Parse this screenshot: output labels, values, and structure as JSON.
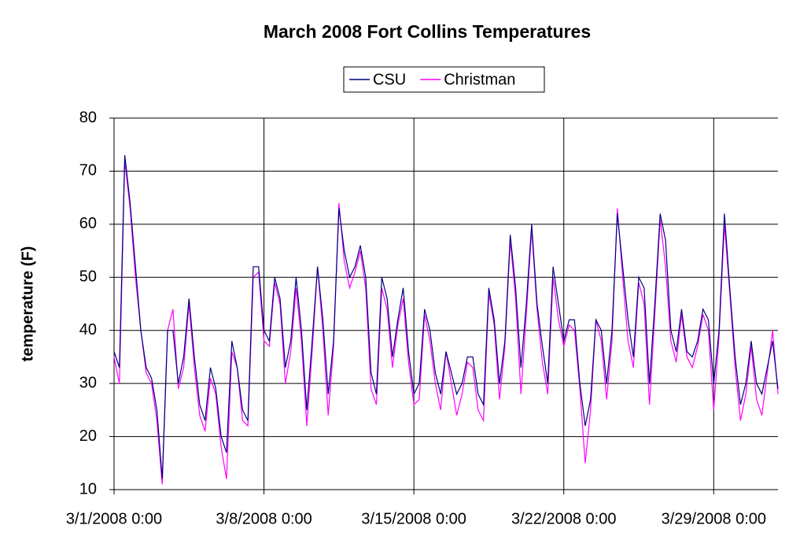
{
  "chart_data": {
    "type": "line",
    "title": "March 2008 Fort Collins Temperatures",
    "y_label": "temperature (F)",
    "ylim": [
      10,
      80
    ],
    "yticks": [
      10,
      20,
      30,
      40,
      50,
      60,
      70,
      80
    ],
    "xlim": [
      "3/1/2008 0:00",
      "4/1/2008 0:00"
    ],
    "xticks": [
      "3/1/2008 0:00",
      "3/8/2008 0:00",
      "3/15/2008 0:00",
      "3/22/2008 0:00",
      "3/29/2008 0:00"
    ],
    "grid": true,
    "legend": "top",
    "x": [
      "3/1/2008 0:00",
      "3/1/2008 6:00",
      "3/1/2008 12:00",
      "3/1/2008 18:00",
      "3/2/2008 0:00",
      "3/2/2008 6:00",
      "3/2/2008 12:00",
      "3/2/2008 18:00",
      "3/3/2008 0:00",
      "3/3/2008 6:00",
      "3/3/2008 12:00",
      "3/3/2008 18:00",
      "3/4/2008 0:00",
      "3/4/2008 6:00",
      "3/4/2008 12:00",
      "3/4/2008 18:00",
      "3/5/2008 0:00",
      "3/5/2008 6:00",
      "3/5/2008 12:00",
      "3/5/2008 18:00",
      "3/6/2008 0:00",
      "3/6/2008 6:00",
      "3/6/2008 12:00",
      "3/6/2008 18:00",
      "3/7/2008 0:00",
      "3/7/2008 6:00",
      "3/7/2008 12:00",
      "3/7/2008 18:00",
      "3/8/2008 0:00",
      "3/8/2008 6:00",
      "3/8/2008 12:00",
      "3/8/2008 18:00",
      "3/9/2008 0:00",
      "3/9/2008 6:00",
      "3/9/2008 12:00",
      "3/9/2008 18:00",
      "3/10/2008 0:00",
      "3/10/2008 6:00",
      "3/10/2008 12:00",
      "3/10/2008 18:00",
      "3/11/2008 0:00",
      "3/11/2008 6:00",
      "3/11/2008 12:00",
      "3/11/2008 18:00",
      "3/12/2008 0:00",
      "3/12/2008 6:00",
      "3/12/2008 12:00",
      "3/12/2008 18:00",
      "3/13/2008 0:00",
      "3/13/2008 6:00",
      "3/13/2008 12:00",
      "3/13/2008 18:00",
      "3/14/2008 0:00",
      "3/14/2008 6:00",
      "3/14/2008 12:00",
      "3/14/2008 18:00",
      "3/15/2008 0:00",
      "3/15/2008 6:00",
      "3/15/2008 12:00",
      "3/15/2008 18:00",
      "3/16/2008 0:00",
      "3/16/2008 6:00",
      "3/16/2008 12:00",
      "3/16/2008 18:00",
      "3/17/2008 0:00",
      "3/17/2008 6:00",
      "3/17/2008 12:00",
      "3/17/2008 18:00",
      "3/18/2008 0:00",
      "3/18/2008 6:00",
      "3/18/2008 12:00",
      "3/18/2008 18:00",
      "3/19/2008 0:00",
      "3/19/2008 6:00",
      "3/19/2008 12:00",
      "3/19/2008 18:00",
      "3/20/2008 0:00",
      "3/20/2008 6:00",
      "3/20/2008 12:00",
      "3/20/2008 18:00",
      "3/21/2008 0:00",
      "3/21/2008 6:00",
      "3/21/2008 12:00",
      "3/21/2008 18:00",
      "3/22/2008 0:00",
      "3/22/2008 6:00",
      "3/22/2008 12:00",
      "3/22/2008 18:00",
      "3/23/2008 0:00",
      "3/23/2008 6:00",
      "3/23/2008 12:00",
      "3/23/2008 18:00",
      "3/24/2008 0:00",
      "3/24/2008 6:00",
      "3/24/2008 12:00",
      "3/24/2008 18:00",
      "3/25/2008 0:00",
      "3/25/2008 6:00",
      "3/25/2008 12:00",
      "3/25/2008 18:00",
      "3/26/2008 0:00",
      "3/26/2008 6:00",
      "3/26/2008 12:00",
      "3/26/2008 18:00",
      "3/27/2008 0:00",
      "3/27/2008 6:00",
      "3/27/2008 12:00",
      "3/27/2008 18:00",
      "3/28/2008 0:00",
      "3/28/2008 6:00",
      "3/28/2008 12:00",
      "3/28/2008 18:00",
      "3/29/2008 0:00",
      "3/29/2008 6:00",
      "3/29/2008 12:00",
      "3/29/2008 18:00",
      "3/30/2008 0:00",
      "3/30/2008 6:00",
      "3/30/2008 12:00",
      "3/30/2008 18:00",
      "3/31/2008 0:00",
      "3/31/2008 6:00",
      "3/31/2008 12:00",
      "3/31/2008 18:00",
      "4/1/2008 0:00"
    ],
    "series": [
      {
        "name": "CSU",
        "color": "#000080",
        "values": [
          36,
          33,
          73,
          64,
          52,
          40,
          33,
          31,
          25,
          12,
          40,
          40,
          30,
          35,
          46,
          35,
          26,
          23,
          33,
          29,
          20,
          17,
          38,
          33,
          25,
          23,
          52,
          52,
          40,
          38,
          50,
          46,
          33,
          38,
          50,
          40,
          25,
          38,
          52,
          42,
          28,
          38,
          63,
          55,
          50,
          52,
          56,
          50,
          32,
          28,
          50,
          46,
          35,
          42,
          48,
          36,
          28,
          30,
          44,
          40,
          32,
          28,
          36,
          32,
          28,
          30,
          35,
          35,
          28,
          26,
          48,
          42,
          30,
          38,
          58,
          48,
          33,
          45,
          60,
          45,
          37,
          30,
          52,
          45,
          38,
          42,
          42,
          30,
          22,
          27,
          42,
          40,
          30,
          40,
          62,
          52,
          42,
          35,
          50,
          48,
          30,
          45,
          62,
          57,
          40,
          36,
          44,
          36,
          35,
          38,
          44,
          42,
          30,
          40,
          62,
          48,
          35,
          26,
          30,
          38,
          30,
          28,
          33,
          38,
          29
        ]
      },
      {
        "name": "Christman",
        "color": "#ff00ff",
        "values": [
          35,
          30,
          72,
          63,
          50,
          40,
          32,
          30,
          23,
          11,
          40,
          44,
          29,
          33,
          45,
          33,
          24,
          21,
          31,
          28,
          18,
          12,
          36,
          33,
          23,
          22,
          50,
          51,
          38,
          37,
          49,
          45,
          30,
          36,
          48,
          38,
          22,
          36,
          52,
          40,
          24,
          37,
          64,
          53,
          48,
          51,
          55,
          48,
          29,
          26,
          48,
          44,
          33,
          41,
          46,
          34,
          26,
          27,
          43,
          38,
          30,
          25,
          36,
          30,
          24,
          28,
          34,
          33,
          25,
          23,
          47,
          41,
          27,
          37,
          57,
          46,
          28,
          43,
          59,
          44,
          34,
          28,
          50,
          42,
          37,
          41,
          40,
          29,
          15,
          25,
          42,
          38,
          27,
          38,
          63,
          50,
          38,
          33,
          49,
          45,
          26,
          43,
          61,
          52,
          38,
          34,
          43,
          35,
          33,
          37,
          43,
          40,
          25,
          39,
          60,
          47,
          33,
          23,
          28,
          37,
          27,
          24,
          32,
          40,
          28
        ]
      }
    ]
  }
}
